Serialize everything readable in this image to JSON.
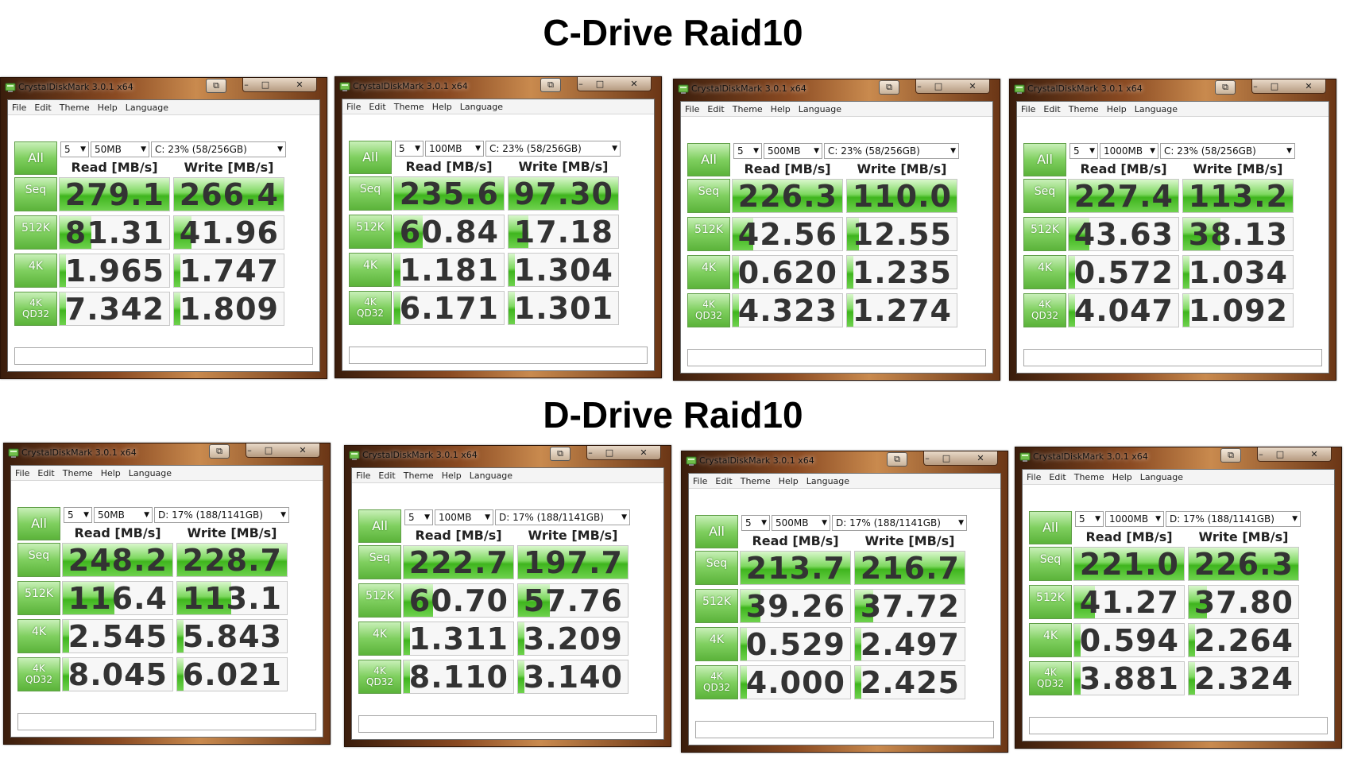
{
  "titles": {
    "c": "C-Drive Raid10",
    "d": "D-Drive Raid10"
  },
  "app_title": "CrystalDiskMark 3.0.1 x64",
  "menu": [
    "File",
    "Edit",
    "Theme",
    "Help",
    "Language"
  ],
  "all_label": "All",
  "headers": {
    "read": "Read [MB/s]",
    "write": "Write [MB/s]"
  },
  "row_labels": [
    "Seq",
    "512K",
    "4K",
    "4K QD32"
  ],
  "controls": {
    "snap": "⧉",
    "min": "–",
    "max": "□",
    "close": "✕"
  },
  "colors": {
    "accent_green": "#5bb33a",
    "frame_brown": "#8a4a22"
  },
  "windows": [
    {
      "count": "5",
      "size": "50MB",
      "drive": "C: 23% (58/256GB)",
      "read": [
        "279.1",
        "81.31",
        "1.965",
        "7.342"
      ],
      "write": [
        "266.4",
        "41.96",
        "1.747",
        "1.809"
      ]
    },
    {
      "count": "5",
      "size": "100MB",
      "drive": "C: 23% (58/256GB)",
      "read": [
        "235.6",
        "60.84",
        "1.181",
        "6.171"
      ],
      "write": [
        "97.30",
        "17.18",
        "1.304",
        "1.301"
      ]
    },
    {
      "count": "5",
      "size": "500MB",
      "drive": "C: 23% (58/256GB)",
      "read": [
        "226.3",
        "42.56",
        "0.620",
        "4.323"
      ],
      "write": [
        "110.0",
        "12.55",
        "1.235",
        "1.274"
      ]
    },
    {
      "count": "5",
      "size": "1000MB",
      "drive": "C: 23% (58/256GB)",
      "read": [
        "227.4",
        "43.63",
        "0.572",
        "4.047"
      ],
      "write": [
        "113.2",
        "38.13",
        "1.034",
        "1.092"
      ]
    },
    {
      "count": "5",
      "size": "50MB",
      "drive": "D: 17% (188/1141GB)",
      "read": [
        "248.2",
        "116.4",
        "2.545",
        "8.045"
      ],
      "write": [
        "228.7",
        "113.1",
        "5.843",
        "6.021"
      ]
    },
    {
      "count": "5",
      "size": "100MB",
      "drive": "D: 17% (188/1141GB)",
      "read": [
        "222.7",
        "60.70",
        "1.311",
        "8.110"
      ],
      "write": [
        "197.7",
        "57.76",
        "3.209",
        "3.140"
      ]
    },
    {
      "count": "5",
      "size": "500MB",
      "drive": "D: 17% (188/1141GB)",
      "read": [
        "213.7",
        "39.26",
        "0.529",
        "4.000"
      ],
      "write": [
        "216.7",
        "37.72",
        "2.497",
        "2.425"
      ]
    },
    {
      "count": "5",
      "size": "1000MB",
      "drive": "D: 17% (188/1141GB)",
      "read": [
        "221.0",
        "41.27",
        "0.594",
        "3.881"
      ],
      "write": [
        "226.3",
        "37.80",
        "2.264",
        "2.324"
      ]
    }
  ]
}
